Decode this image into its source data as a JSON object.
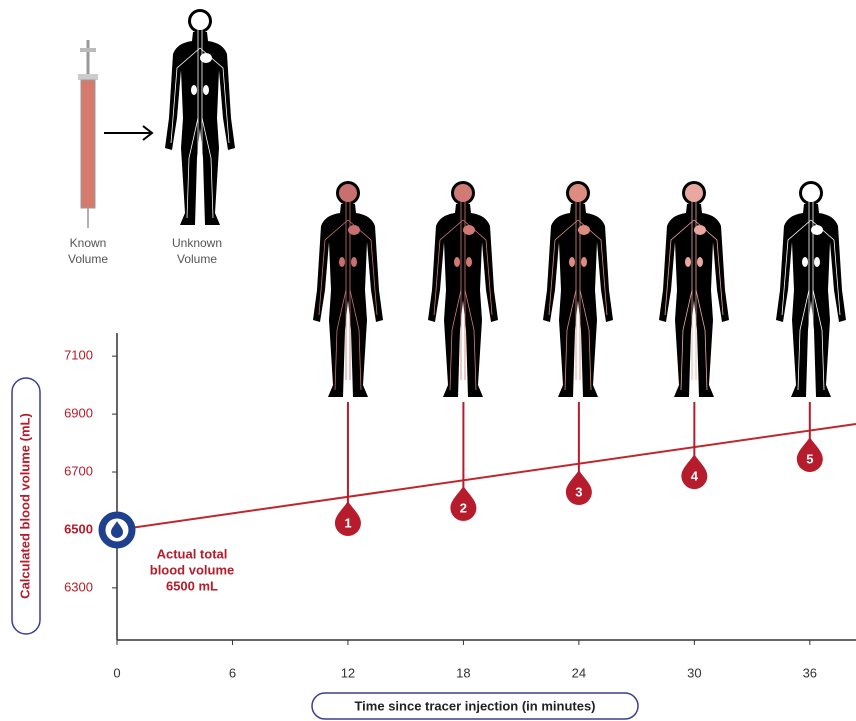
{
  "chart_data": {
    "type": "line",
    "x_label": "Time since tracer injection (in minutes)",
    "y_label": "Calculated blood volume (mL)",
    "xlim": [
      0,
      38.4
    ],
    "ylim": [
      6120,
      7180
    ],
    "xticks": [
      0,
      6,
      12,
      18,
      24,
      30,
      36
    ],
    "yticks": [
      6300,
      6500,
      6700,
      6900,
      7100
    ],
    "line": {
      "color": "#c0262d",
      "x": [
        0,
        38.4
      ],
      "values": [
        6500,
        6866
      ]
    },
    "markers": {
      "color": "#b71c2c",
      "x": [
        12,
        18,
        24,
        30,
        36
      ],
      "values": [
        6524,
        6576,
        6631,
        6686,
        6745
      ],
      "labels": [
        "1",
        "2",
        "3",
        "4",
        "5"
      ]
    },
    "start": {
      "color": "#1f3f8f",
      "x": 0,
      "value": 6500
    },
    "annotation": [
      "Actual total",
      "blood volume",
      "6500 mL"
    ]
  },
  "illustration": {
    "syringe_label": [
      "Known",
      "Volume"
    ],
    "body_label": [
      "Unknown",
      "Volume"
    ]
  }
}
